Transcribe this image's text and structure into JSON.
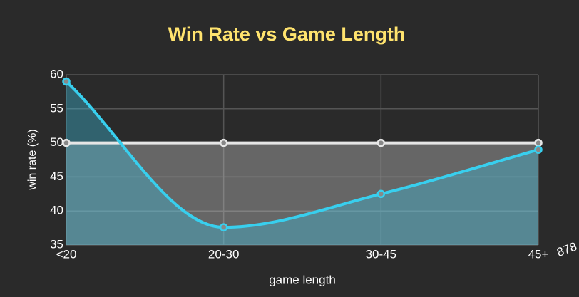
{
  "chart_data": {
    "type": "line",
    "title": "Win Rate vs Game Length",
    "xlabel": "game length",
    "ylabel": "win rate (%)",
    "annotation": "878",
    "categories": [
      "<20",
      "20-30",
      "30-45",
      "45+"
    ],
    "series": [
      {
        "color": "#e6e6e6",
        "fill": "rgba(200,200,200,0.38)",
        "values": [
          50,
          50,
          50,
          50
        ]
      },
      {
        "color": "#38cfee",
        "fill": "rgba(60,190,220,0.38)",
        "values": [
          59,
          37.6,
          42.5,
          49
        ]
      }
    ],
    "ylim": [
      35,
      60
    ],
    "yticks": [
      35,
      40,
      45,
      50,
      55,
      60
    ],
    "grid": true
  }
}
